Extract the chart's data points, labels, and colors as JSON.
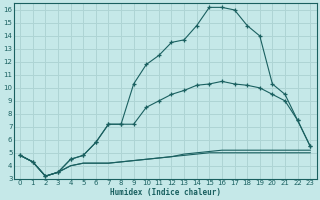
{
  "xlabel": "Humidex (Indice chaleur)",
  "bg_color": "#c5e8e8",
  "grid_color": "#aed4d4",
  "line_color": "#1a6060",
  "xlim": [
    -0.5,
    23.5
  ],
  "ylim": [
    3,
    16.5
  ],
  "xticks": [
    0,
    1,
    2,
    3,
    4,
    5,
    6,
    7,
    8,
    9,
    10,
    11,
    12,
    13,
    14,
    15,
    16,
    17,
    18,
    19,
    20,
    21,
    22,
    23
  ],
  "yticks": [
    3,
    4,
    5,
    6,
    7,
    8,
    9,
    10,
    11,
    12,
    13,
    14,
    15,
    16
  ],
  "series": [
    {
      "x": [
        0,
        1,
        2,
        3,
        4,
        5,
        6,
        7,
        8,
        9,
        10,
        11,
        12,
        13,
        14,
        15,
        16,
        17,
        18,
        19,
        20,
        21,
        22,
        23
      ],
      "y": [
        4.8,
        4.3,
        3.2,
        3.5,
        4.0,
        4.2,
        4.2,
        4.2,
        4.3,
        4.4,
        4.5,
        4.6,
        4.7,
        4.8,
        4.9,
        5.0,
        5.0,
        5.0,
        5.0,
        5.0,
        5.0,
        5.0,
        5.0,
        5.0
      ],
      "marker": false
    },
    {
      "x": [
        0,
        1,
        2,
        3,
        4,
        5,
        6,
        7,
        8,
        9,
        10,
        11,
        12,
        13,
        14,
        15,
        16,
        17,
        18,
        19,
        20,
        21,
        22,
        23
      ],
      "y": [
        4.8,
        4.3,
        3.2,
        3.5,
        4.0,
        4.2,
        4.2,
        4.2,
        4.3,
        4.4,
        4.5,
        4.6,
        4.7,
        4.9,
        5.0,
        5.1,
        5.2,
        5.2,
        5.2,
        5.2,
        5.2,
        5.2,
        5.2,
        5.2
      ],
      "marker": false
    },
    {
      "x": [
        0,
        1,
        2,
        3,
        4,
        5,
        6,
        7,
        8,
        9,
        10,
        11,
        12,
        13,
        14,
        15,
        16,
        17,
        18,
        19,
        20,
        21,
        22,
        23
      ],
      "y": [
        4.8,
        4.3,
        3.2,
        3.5,
        4.5,
        4.8,
        5.8,
        7.2,
        7.2,
        7.2,
        8.5,
        9.0,
        9.5,
        9.8,
        10.2,
        10.3,
        10.5,
        10.3,
        10.2,
        10.0,
        9.5,
        9.0,
        7.5,
        5.5
      ],
      "marker": true
    },
    {
      "x": [
        0,
        1,
        2,
        3,
        4,
        5,
        6,
        7,
        8,
        9,
        10,
        11,
        12,
        13,
        14,
        15,
        16,
        17,
        18,
        19,
        20,
        21,
        22,
        23
      ],
      "y": [
        4.8,
        4.3,
        3.2,
        3.5,
        4.5,
        4.8,
        5.8,
        7.2,
        7.2,
        10.3,
        11.8,
        12.5,
        13.5,
        13.7,
        14.8,
        16.2,
        16.2,
        16.0,
        14.8,
        14.0,
        10.3,
        9.5,
        7.5,
        5.5
      ],
      "marker": true
    }
  ]
}
